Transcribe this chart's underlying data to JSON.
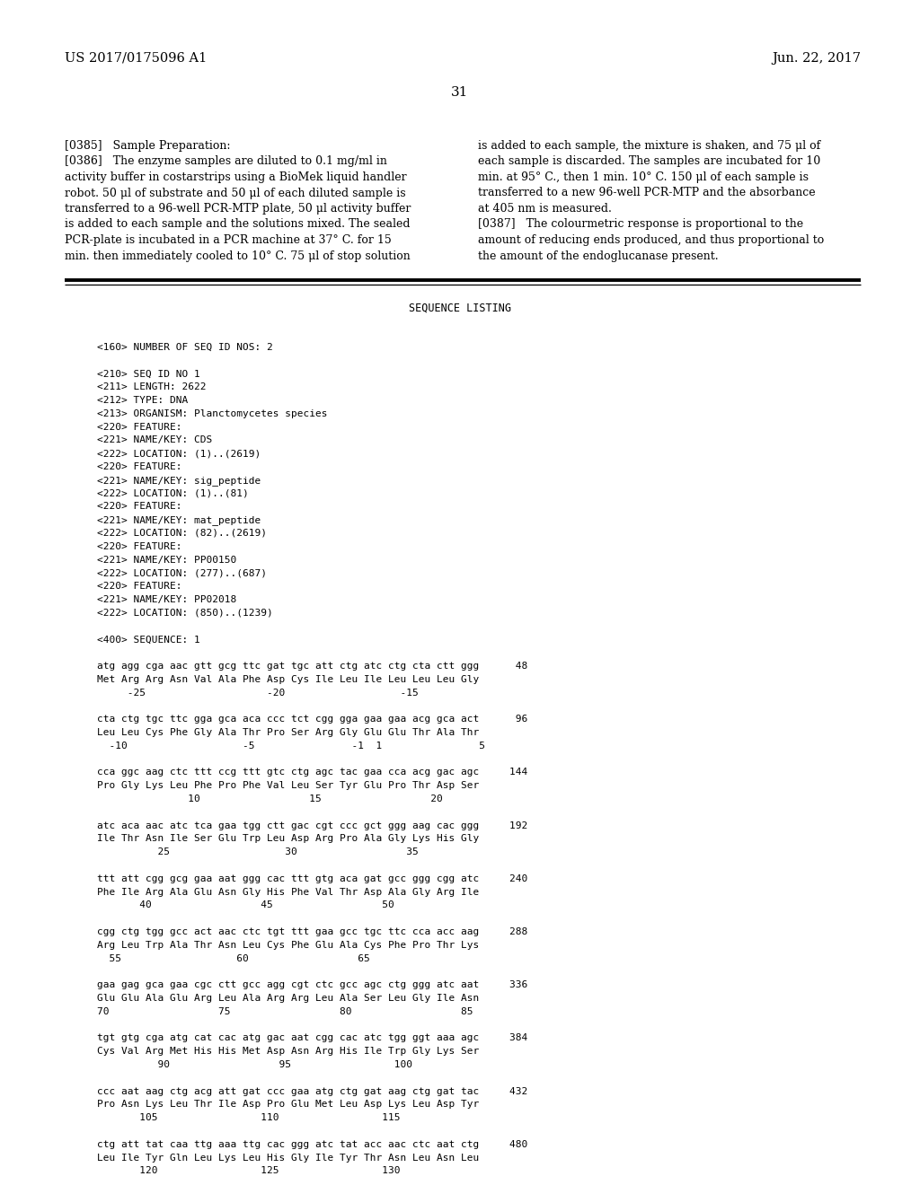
{
  "page_number": "31",
  "patent_left": "US 2017/0175096 A1",
  "patent_right": "Jun. 22, 2017",
  "background_color": "#ffffff",
  "text_color": "#000000",
  "sequence_listing_title": "SEQUENCE LISTING",
  "left_lines": [
    "[0385]   Sample Preparation:",
    "[0386]   The enzyme samples are diluted to 0.1 mg/ml in",
    "activity buffer in costarstrips using a BioMek liquid handler",
    "robot. 50 μl of substrate and 50 μl of each diluted sample is",
    "transferred to a 96-well PCR-MTP plate, 50 μl activity buffer",
    "is added to each sample and the solutions mixed. The sealed",
    "PCR-plate is incubated in a PCR machine at 37° C. for 15",
    "min. then immediately cooled to 10° C. 75 μl of stop solution"
  ],
  "right_lines": [
    "is added to each sample, the mixture is shaken, and 75 μl of",
    "each sample is discarded. The samples are incubated for 10",
    "min. at 95° C., then 1 min. 10° C. 150 μl of each sample is",
    "transferred to a new 96-well PCR-MTP and the absorbance",
    "at 405 nm is measured.",
    "[0387]   The colourmetric response is proportional to the",
    "amount of reducing ends produced, and thus proportional to",
    "the amount of the endoglucanase present."
  ],
  "sequence_lines": [
    "",
    "<160> NUMBER OF SEQ ID NOS: 2",
    "",
    "<210> SEQ ID NO 1",
    "<211> LENGTH: 2622",
    "<212> TYPE: DNA",
    "<213> ORGANISM: Planctomycetes species",
    "<220> FEATURE:",
    "<221> NAME/KEY: CDS",
    "<222> LOCATION: (1)..(2619)",
    "<220> FEATURE:",
    "<221> NAME/KEY: sig_peptide",
    "<222> LOCATION: (1)..(81)",
    "<220> FEATURE:",
    "<221> NAME/KEY: mat_peptide",
    "<222> LOCATION: (82)..(2619)",
    "<220> FEATURE:",
    "<221> NAME/KEY: PP00150",
    "<222> LOCATION: (277)..(687)",
    "<220> FEATURE:",
    "<221> NAME/KEY: PP02018",
    "<222> LOCATION: (850)..(1239)",
    "",
    "<400> SEQUENCE: 1",
    "",
    "atg agg cga aac gtt gcg ttc gat tgc att ctg atc ctg cta ctt ggg      48",
    "Met Arg Arg Asn Val Ala Phe Asp Cys Ile Leu Ile Leu Leu Leu Gly",
    "     -25                    -20                   -15",
    "",
    "cta ctg tgc ttc gga gca aca ccc tct cgg gga gaa gaa acg gca act      96",
    "Leu Leu Cys Phe Gly Ala Thr Pro Ser Arg Gly Glu Glu Thr Ala Thr",
    "  -10                   -5                -1  1                5",
    "",
    "cca ggc aag ctc ttt ccg ttt gtc ctg agc tac gaa cca acg gac agc     144",
    "Pro Gly Lys Leu Phe Pro Phe Val Leu Ser Tyr Glu Pro Thr Asp Ser",
    "               10                  15                  20",
    "",
    "atc aca aac atc tca gaa tgg ctt gac cgt ccc gct ggg aag cac ggg     192",
    "Ile Thr Asn Ile Ser Glu Trp Leu Asp Arg Pro Ala Gly Lys His Gly",
    "          25                   30                  35",
    "",
    "ttt att cgg gcg gaa aat ggg cac ttt gtg aca gat gcc ggg cgg atc     240",
    "Phe Ile Arg Ala Glu Asn Gly His Phe Val Thr Asp Ala Gly Arg Ile",
    "       40                  45                  50",
    "",
    "cgg ctg tgg gcc act aac ctc tgt ttt gaa gcc tgc ttc cca acc aag     288",
    "Arg Leu Trp Ala Thr Asn Leu Cys Phe Glu Ala Cys Phe Pro Thr Lys",
    "  55                   60                  65",
    "",
    "gaa gag gca gaa cgc ctt gcc agg cgt ctc gcc agc ctg ggg atc aat     336",
    "Glu Glu Ala Glu Arg Leu Ala Arg Arg Leu Ala Ser Leu Gly Ile Asn",
    "70                  75                  80                  85",
    "",
    "tgt gtg cga atg cat cac atg gac aat cgg cac atc tgg ggt aaa agc     384",
    "Cys Val Arg Met His His Met Asp Asn Arg His Ile Trp Gly Lys Ser",
    "          90                  95                 100",
    "",
    "ccc aat aag ctg acg att gat ccc gaa atg ctg gat aag ctg gat tac     432",
    "Pro Asn Lys Leu Thr Ile Asp Pro Glu Met Leu Asp Lys Leu Asp Tyr",
    "       105                 110                 115",
    "",
    "ctg att tat caa ttg aaa ttg cac ggg atc tat acc aac ctc aat ctg     480",
    "Leu Ile Tyr Gln Leu Lys Leu His Gly Ile Tyr Thr Asn Leu Asn Leu",
    "       120                 125                 130"
  ]
}
